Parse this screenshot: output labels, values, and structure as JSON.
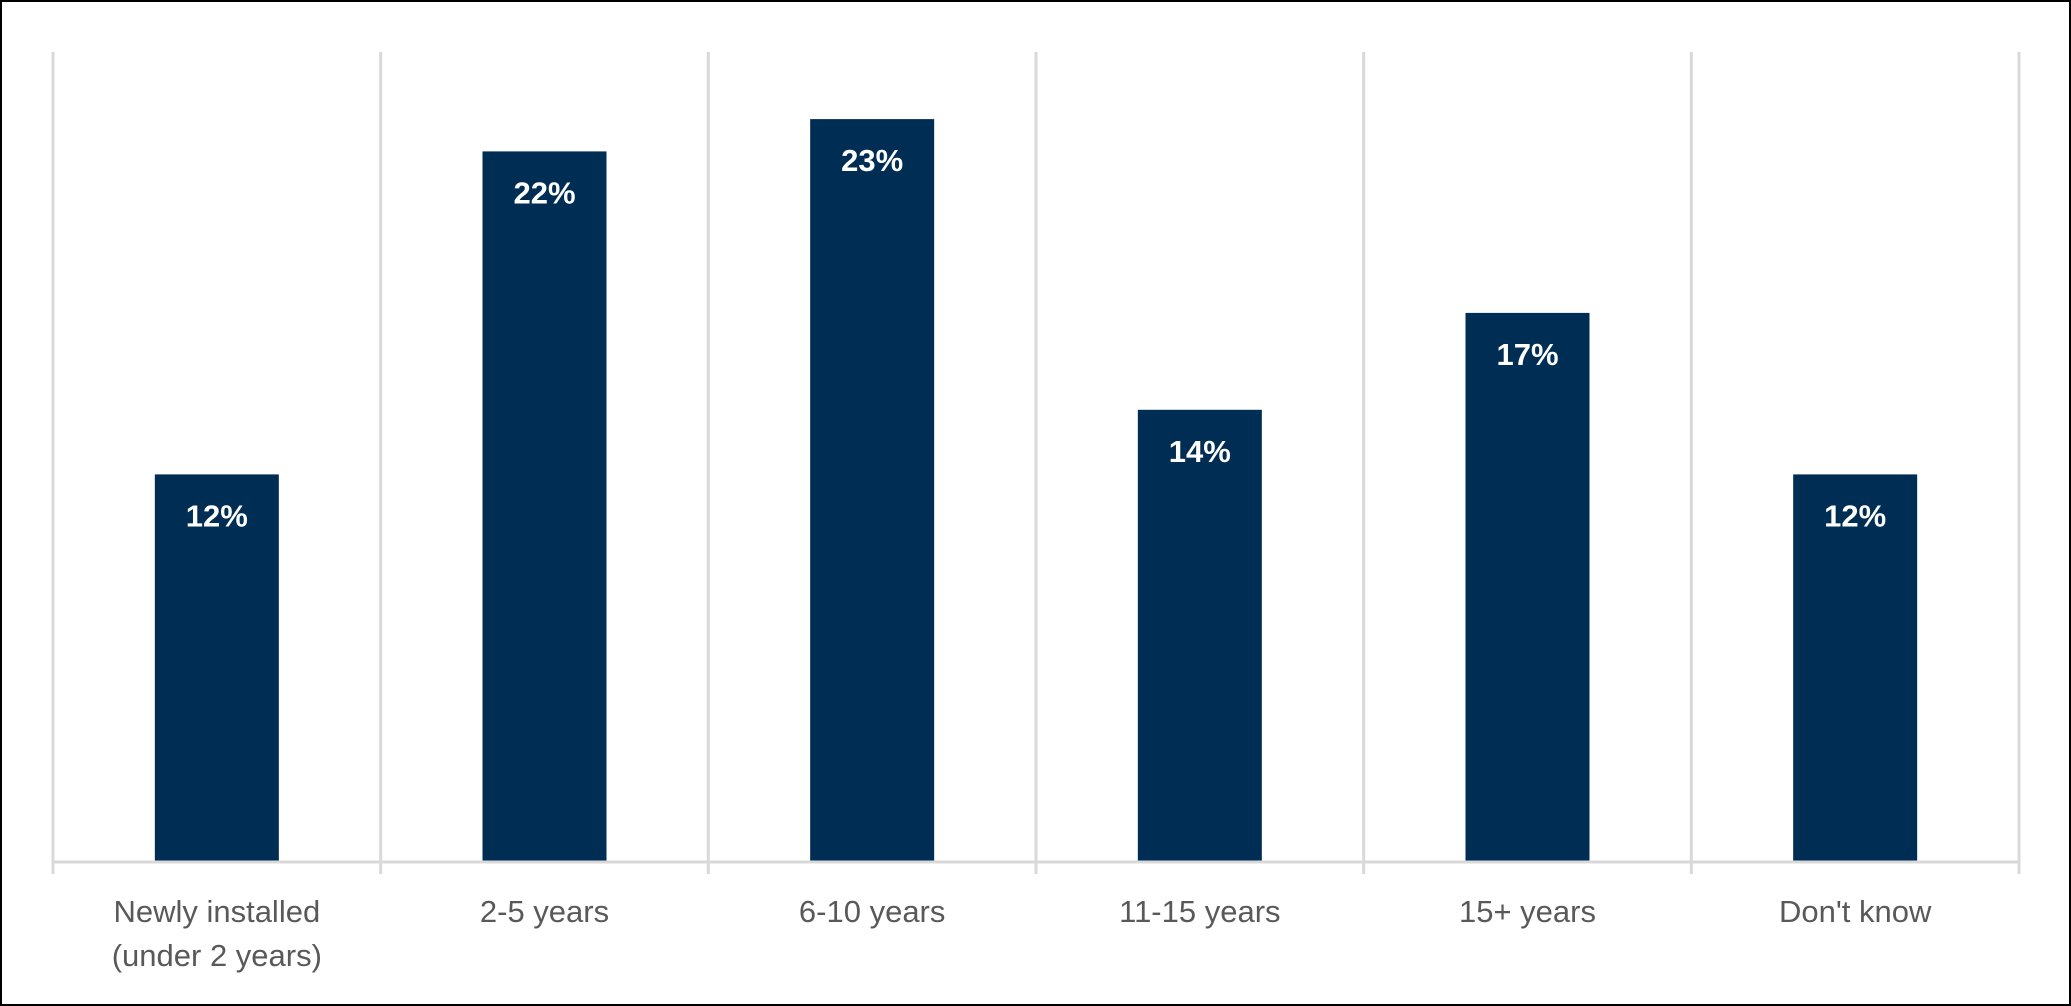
{
  "chart_data": {
    "type": "bar",
    "categories": [
      [
        "Newly installed",
        "(under 2 years)"
      ],
      [
        "2-5 years"
      ],
      [
        "6-10 years"
      ],
      [
        "11-15 years"
      ],
      [
        "15+ years"
      ],
      [
        "Don't know"
      ]
    ],
    "values": [
      12,
      22,
      23,
      14,
      17,
      12
    ],
    "data_labels": [
      "12%",
      "22%",
      "23%",
      "14%",
      "17%",
      "12%"
    ],
    "unit": "%",
    "title": "",
    "xlabel": "",
    "ylabel": "",
    "ylim": [
      0,
      25
    ],
    "grid": "vertical category separators",
    "legend": "none",
    "colors": {
      "bar": "#002D53",
      "grid": "#D9D9D9",
      "axis": "#D9D9D9",
      "category_text": "#595959",
      "data_label_text": "#FFFFFF",
      "frame": "#000000"
    }
  }
}
